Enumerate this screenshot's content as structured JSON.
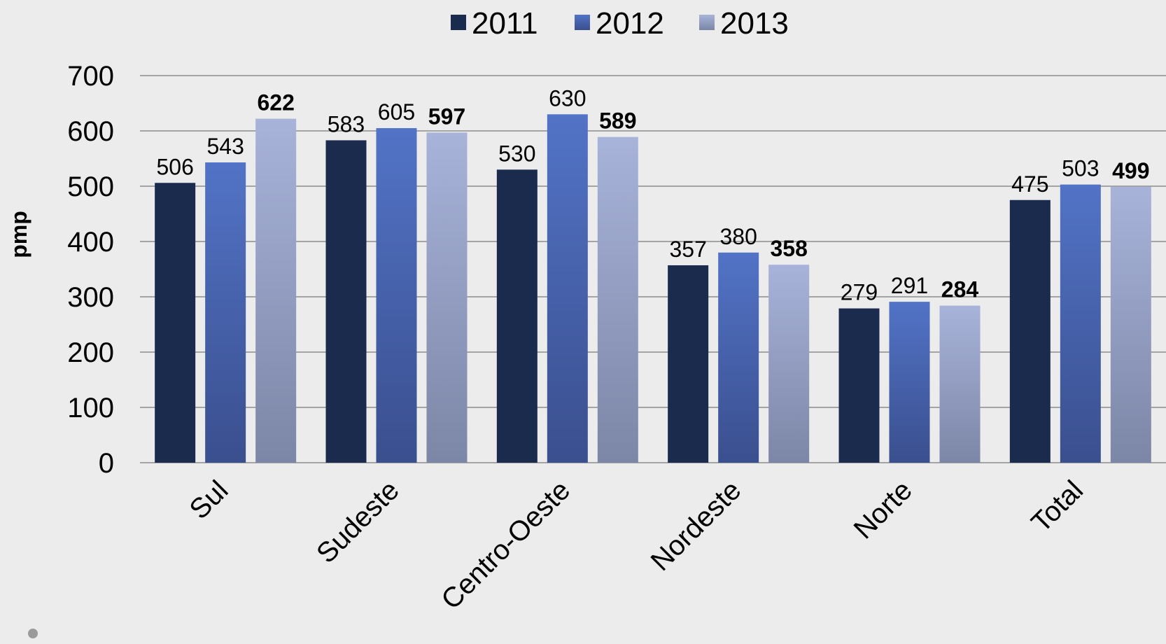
{
  "chart_data": {
    "type": "bar",
    "ylabel": "pmp",
    "xlabel": "",
    "ylim": [
      0,
      700
    ],
    "yticks": [
      0,
      100,
      200,
      300,
      400,
      500,
      600,
      700
    ],
    "grid": true,
    "legend_position": "top-center",
    "categories": [
      "Sul",
      "Sudeste",
      "Centro-Oeste",
      "Nordeste",
      "Norte",
      "Total"
    ],
    "series": [
      {
        "name": "2011",
        "color": "#1b2b4e",
        "values": [
          506,
          583,
          530,
          357,
          279,
          475
        ]
      },
      {
        "name": "2012",
        "color": "#4e6dbd",
        "values": [
          543,
          605,
          630,
          380,
          291,
          503
        ]
      },
      {
        "name": "2013",
        "color": "#a4aed5",
        "values": [
          622,
          597,
          589,
          358,
          284,
          499
        ]
      }
    ],
    "bold_series": "2013"
  }
}
